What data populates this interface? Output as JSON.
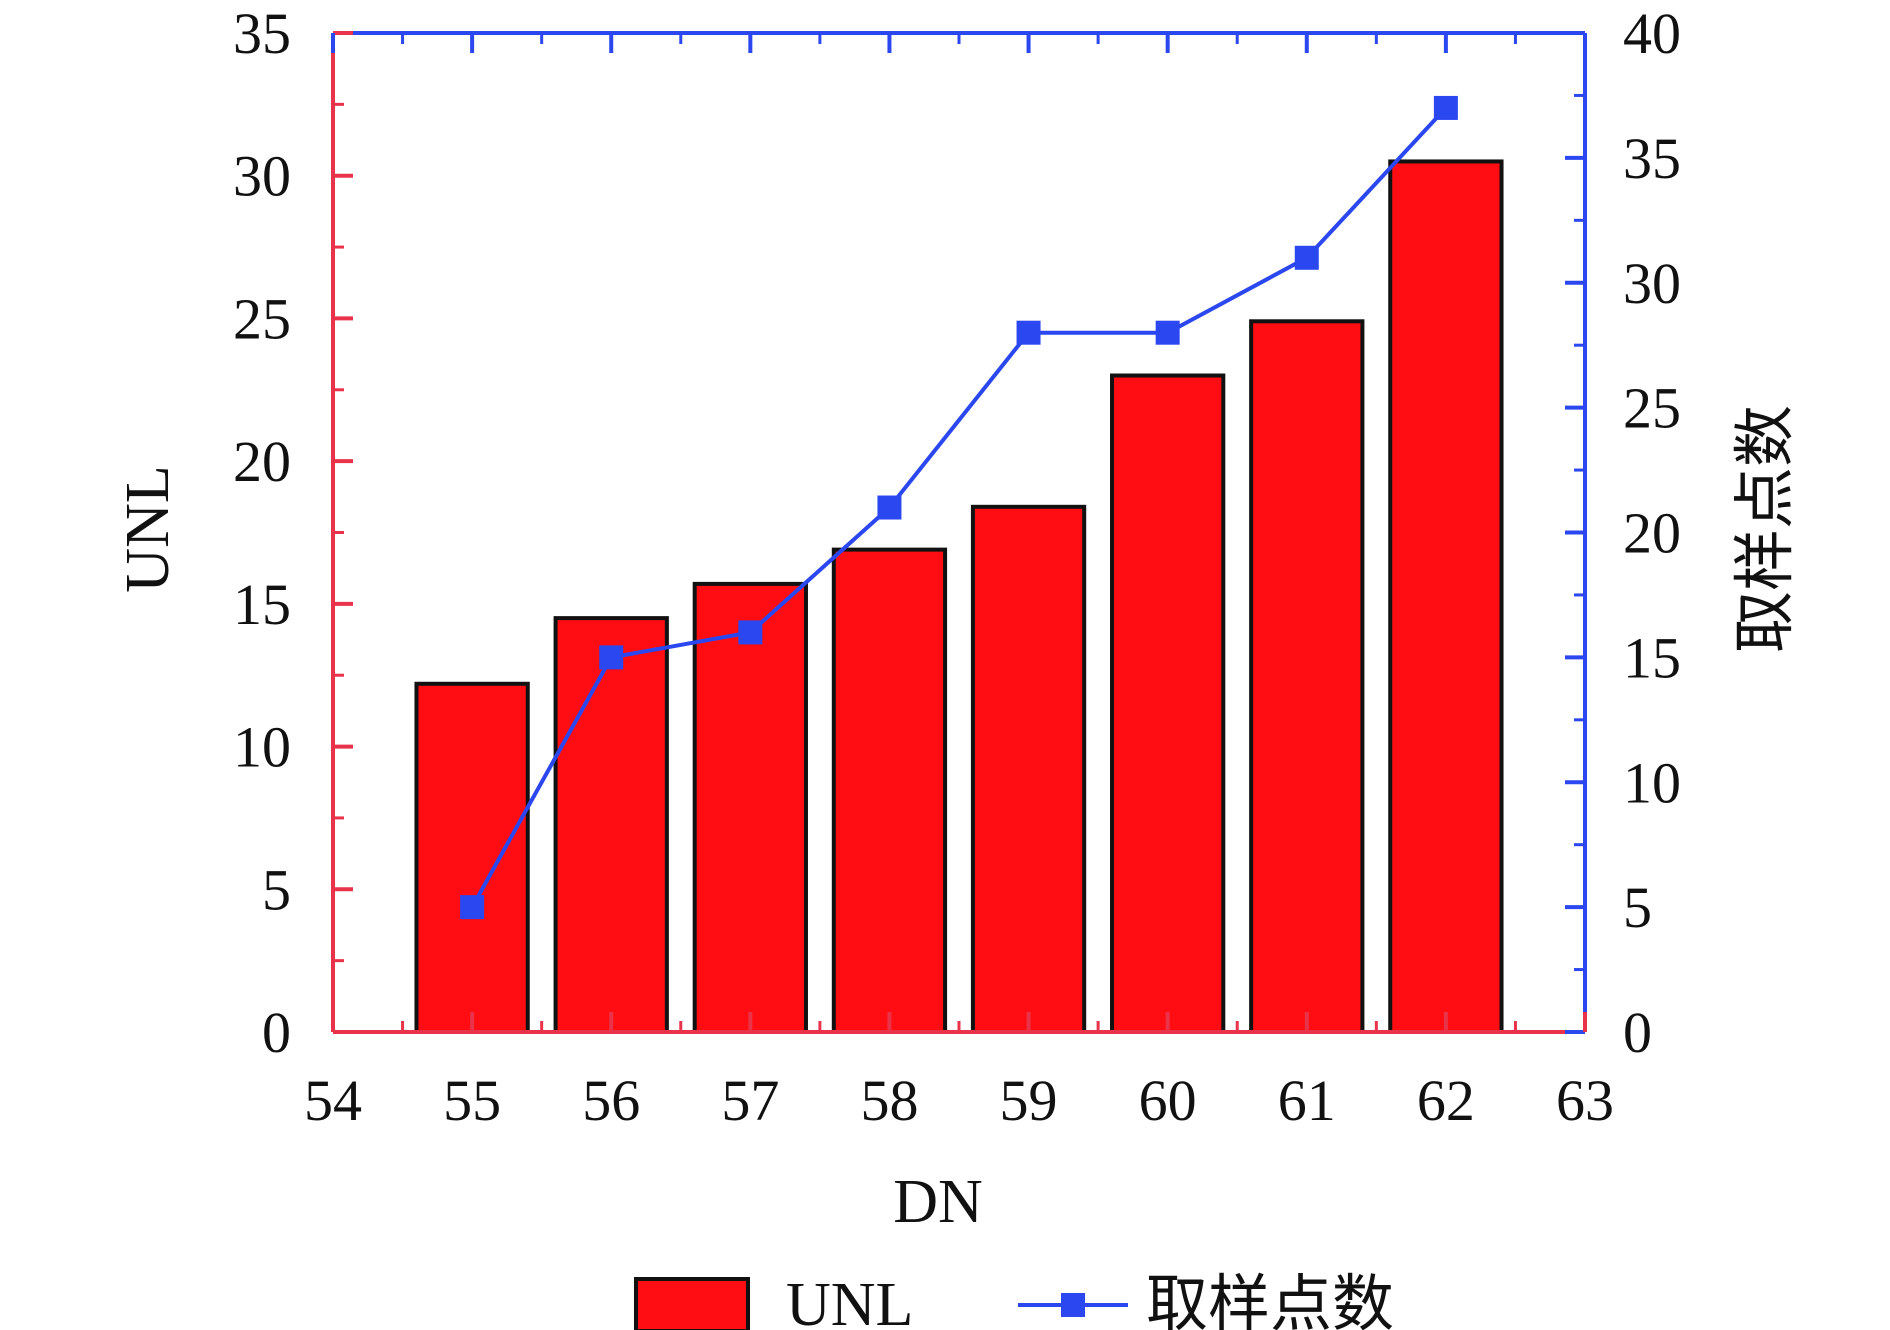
{
  "chart_data": {
    "type": "bar",
    "title": "",
    "xlabel": "DN",
    "ylabel": "UNL",
    "ylabel_right": "取样点数",
    "xlim": [
      54,
      63
    ],
    "ylim": [
      0,
      35
    ],
    "ylim_right": [
      0,
      40
    ],
    "x_ticks": [
      "54",
      "55",
      "56",
      "57",
      "58",
      "59",
      "60",
      "61",
      "62",
      "63"
    ],
    "y_ticks": [
      "0",
      "5",
      "10",
      "15",
      "20",
      "25",
      "30",
      "35"
    ],
    "y_ticks_right": [
      "0",
      "5",
      "10",
      "15",
      "20",
      "25",
      "30",
      "35",
      "40"
    ],
    "grid": false,
    "legend_position": "bottom",
    "series": [
      {
        "name": "UNL",
        "type": "bar",
        "axis": "left",
        "color": "#ff0d12",
        "x": [
          55,
          56,
          57,
          58,
          59,
          60,
          61,
          62
        ],
        "values": [
          12.2,
          14.5,
          15.7,
          16.9,
          18.4,
          23.0,
          24.9,
          30.5
        ]
      },
      {
        "name": "取样点数",
        "type": "line",
        "axis": "right",
        "color": "#2a47f0",
        "marker": "square",
        "x": [
          55,
          56,
          57,
          58,
          59,
          60,
          61,
          62
        ],
        "values": [
          5,
          15,
          16,
          21,
          28,
          28,
          31,
          37
        ]
      }
    ],
    "colors": {
      "left_axis": "#e8334a",
      "right_axis": "#2a47f0",
      "bar_fill": "#ff0d12",
      "bar_edge": "#111111",
      "line": "#2a47f0"
    }
  }
}
